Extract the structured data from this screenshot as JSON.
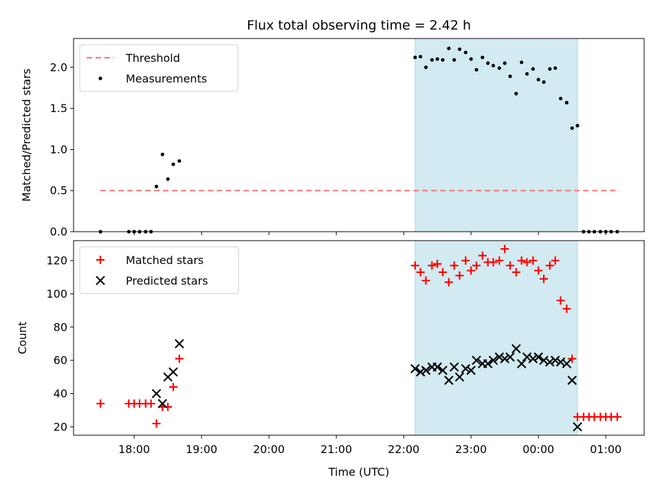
{
  "chart_data": {
    "title": "Flux total observing time = 2.42 h",
    "xlabel": "Time (UTC)",
    "x_unit": "hours (UTC, 24.0 = 00:00 next day)",
    "xlim": [
      17.1,
      25.57
    ],
    "xticks": [
      {
        "value": 18,
        "label": "18:00"
      },
      {
        "value": 19,
        "label": "19:00"
      },
      {
        "value": 20,
        "label": "20:00"
      },
      {
        "value": 21,
        "label": "21:00"
      },
      {
        "value": 22,
        "label": "22:00"
      },
      {
        "value": 23,
        "label": "23:00"
      },
      {
        "value": 24,
        "label": "00:00"
      },
      {
        "value": 25,
        "label": "01:00"
      }
    ],
    "shaded_interval": {
      "x": [
        22.17,
        24.58
      ],
      "color": "#add8e6"
    },
    "panels": [
      {
        "type": "scatter",
        "ylabel": "Matched/Predicted stars",
        "ylim": [
          0.0,
          2.35
        ],
        "yticks": [
          "0.0",
          "0.5",
          "1.0",
          "1.5",
          "2.0"
        ],
        "legend": {
          "position": "top-left",
          "entries": [
            "Threshold",
            "Measurements"
          ]
        },
        "threshold": {
          "name": "Threshold",
          "value": 0.5,
          "x": [
            17.5,
            25.2
          ],
          "color": "#f08080",
          "style": "dashed"
        },
        "series": [
          {
            "name": "Measurements",
            "marker": "dot",
            "color": "#000000",
            "x": [
              17.5,
              17.92,
              18.0,
              18.08,
              18.17,
              18.25,
              18.33,
              18.42,
              18.5,
              18.58,
              18.67,
              22.17,
              22.25,
              22.33,
              22.42,
              22.5,
              22.58,
              22.67,
              22.75,
              22.83,
              22.92,
              23.0,
              23.08,
              23.17,
              23.25,
              23.33,
              23.42,
              23.5,
              23.58,
              23.67,
              23.75,
              23.83,
              23.92,
              24.0,
              24.08,
              24.17,
              24.25,
              24.33,
              24.42,
              24.5,
              24.58,
              24.67,
              24.75,
              24.83,
              24.92,
              25.0,
              25.08,
              25.17
            ],
            "y": [
              0.0,
              0.0,
              0.0,
              0.0,
              0.0,
              0.0,
              0.55,
              0.94,
              0.64,
              0.82,
              0.86,
              2.12,
              2.13,
              2.0,
              2.09,
              2.1,
              2.09,
              2.23,
              2.09,
              2.22,
              2.18,
              2.1,
              1.97,
              2.12,
              2.05,
              2.02,
              1.99,
              2.05,
              1.89,
              1.68,
              2.06,
              1.92,
              1.98,
              1.85,
              1.82,
              1.98,
              1.99,
              1.62,
              1.57,
              1.26,
              1.29,
              0.0,
              0.0,
              0.0,
              0.0,
              0.0,
              0.0,
              0.0
            ]
          }
        ]
      },
      {
        "type": "scatter",
        "ylabel": "Count",
        "ylim": [
          15,
          132
        ],
        "yticks": [
          "20",
          "40",
          "60",
          "80",
          "100",
          "120"
        ],
        "legend": {
          "position": "top-left",
          "entries": [
            "Matched stars",
            "Predicted stars"
          ]
        },
        "series": [
          {
            "name": "Matched stars",
            "marker": "plus",
            "color": "#ff0000",
            "x": [
              17.5,
              17.92,
              18.0,
              18.08,
              18.17,
              18.25,
              18.33,
              18.42,
              18.5,
              18.58,
              18.67,
              22.17,
              22.25,
              22.33,
              22.42,
              22.5,
              22.58,
              22.67,
              22.75,
              22.83,
              22.92,
              23.0,
              23.08,
              23.17,
              23.25,
              23.33,
              23.42,
              23.5,
              23.58,
              23.67,
              23.75,
              23.83,
              23.92,
              24.0,
              24.08,
              24.17,
              24.25,
              24.33,
              24.42,
              24.5,
              24.58,
              24.67,
              24.75,
              24.83,
              24.92,
              25.0,
              25.08,
              25.17
            ],
            "y": [
              34,
              34,
              34,
              34,
              34,
              34,
              22,
              32,
              32,
              44,
              61,
              117,
              113,
              108,
              117,
              118,
              113,
              107,
              117,
              111,
              120,
              114,
              117,
              123,
              119,
              119,
              120,
              127,
              117,
              113,
              120,
              119,
              120,
              114,
              109,
              117,
              120,
              96,
              91,
              61,
              26,
              26,
              26,
              26,
              26,
              26,
              26,
              26
            ]
          },
          {
            "name": "Predicted stars",
            "marker": "x",
            "color": "#000000",
            "x": [
              18.33,
              18.42,
              18.5,
              18.58,
              18.67,
              22.17,
              22.25,
              22.33,
              22.42,
              22.5,
              22.58,
              22.67,
              22.75,
              22.83,
              22.92,
              23.0,
              23.08,
              23.17,
              23.25,
              23.33,
              23.42,
              23.5,
              23.58,
              23.67,
              23.75,
              23.83,
              23.92,
              24.0,
              24.08,
              24.17,
              24.25,
              24.33,
              24.42,
              24.5,
              24.58
            ],
            "y": [
              40,
              34,
              50,
              53,
              70,
              55,
              53,
              54,
              56,
              56,
              54,
              48,
              56,
              50,
              55,
              54,
              60,
              58,
              58,
              60,
              62,
              61,
              62,
              67,
              58,
              62,
              61,
              62,
              60,
              59,
              60,
              59,
              58,
              48,
              20
            ]
          }
        ]
      }
    ]
  }
}
